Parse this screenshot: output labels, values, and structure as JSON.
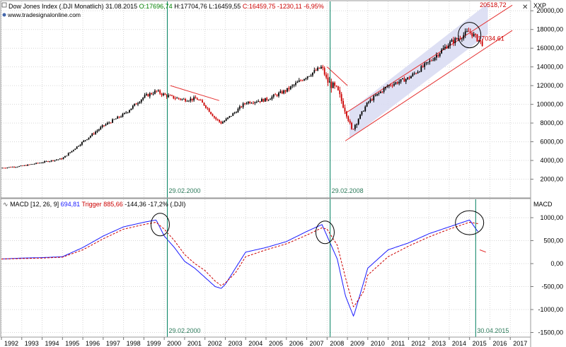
{
  "header": {
    "name": "Dow Jones Index (.DJI Monatlich)",
    "date": "31.08.2015",
    "open": "O:17696,74",
    "high": "H:17704,76",
    "low": "L:16459,55",
    "close": "C:16459,75",
    "change": "-1230,11",
    "change_pct": "-6,95%",
    "website": "www.tradesignalonline.com",
    "close_icon": "close-icon"
  },
  "price_panel": {
    "axis_label": "XXP",
    "last_label": "17034,61",
    "channel_label": "20518,72",
    "y_ticks": [
      "20000,00",
      "18000,00",
      "16000,00",
      "14000,00",
      "12000,00",
      "10000,00",
      "8000,00",
      "6000,00",
      "4000,00",
      "2000,00"
    ],
    "date_marker_1": "29.02.2000",
    "date_marker_2": "29.02.2008",
    "colors": {
      "up": "#000000",
      "down": "#cc0000",
      "channel": "#e53030",
      "channel_fill": "#d8daf2",
      "marker_line": "#008060",
      "marker_text": "#2c7a5a"
    }
  },
  "macd_panel": {
    "title": "MACD [12, 26, 9]",
    "macd_value": "694,81",
    "trigger_label": "Trigger",
    "trigger_value": "885,66",
    "diff": "-144,36",
    "diff_pct": "-17,2%",
    "symbol": "(.DJI)",
    "axis_label": "MACD",
    "y_ticks": [
      "1000,00",
      "500,00",
      "0,00",
      "-500,00",
      "-1000,00",
      "-1500,00"
    ],
    "date_marker_1": "29.02.2000",
    "date_marker_2": "30.04.2015",
    "colors": {
      "macd": "#1a1aff",
      "trigger": "#cc0000"
    }
  },
  "x_axis": {
    "years": [
      "1992",
      "1993",
      "1994",
      "1995",
      "1996",
      "1997",
      "1998",
      "1999",
      "2000",
      "2001",
      "2002",
      "2003",
      "2004",
      "2005",
      "2006",
      "2007",
      "2008",
      "2009",
      "2010",
      "2011",
      "2012",
      "2013",
      "2014",
      "2015",
      "2016",
      "2017"
    ]
  },
  "chart_data": [
    {
      "type": "candlestick",
      "title": "Dow Jones Index (.DJI Monatlich)",
      "x": [
        1992,
        1993,
        1994,
        1995,
        1996,
        1997,
        1998,
        1999,
        1999.6,
        2000,
        2000.5,
        2001,
        2001.6,
        2002,
        2002.5,
        2002.8,
        2003,
        2003.5,
        2004,
        2005,
        2006,
        2007,
        2007.75,
        2008,
        2008.5,
        2009,
        2009.2,
        2010,
        2011,
        2012,
        2013,
        2014,
        2015,
        2015.6
      ],
      "close": [
        3200,
        3400,
        3800,
        4200,
        6000,
        7700,
        8900,
        10800,
        11400,
        11000,
        10700,
        10500,
        10600,
        9900,
        8500,
        8000,
        8300,
        9200,
        10200,
        10500,
        11500,
        13000,
        14000,
        12500,
        11500,
        8800,
        7200,
        10200,
        12000,
        12800,
        14500,
        16500,
        17800,
        16500
      ],
      "ylim": [
        0,
        21000
      ],
      "annotations": [
        "29.02.2000",
        "29.02.2008",
        "20518,72",
        "17034,61"
      ]
    },
    {
      "type": "line",
      "title": "MACD [12, 26, 9]",
      "x": [
        1992,
        1993,
        1994,
        1995,
        1996,
        1997,
        1998,
        1999,
        1999.6,
        2000,
        2000.5,
        2001,
        2001.5,
        2002,
        2002.5,
        2002.8,
        2003,
        2003.5,
        2004,
        2005,
        2006,
        2007,
        2007.75,
        2008,
        2008.5,
        2008.9,
        2009.3,
        2009.8,
        2010,
        2011,
        2012,
        2013,
        2014,
        2015,
        2015.4
      ],
      "series": [
        {
          "name": "MACD",
          "values": [
            100,
            120,
            130,
            150,
            350,
            600,
            800,
            900,
            950,
            600,
            350,
            50,
            -100,
            -300,
            -500,
            -540,
            -450,
            -100,
            250,
            350,
            480,
            700,
            850,
            600,
            100,
            -700,
            -1150,
            -400,
            -100,
            300,
            450,
            650,
            800,
            950,
            700
          ]
        },
        {
          "name": "Trigger",
          "values": [
            100,
            110,
            120,
            140,
            300,
            540,
            750,
            850,
            900,
            750,
            500,
            200,
            0,
            -150,
            -380,
            -480,
            -420,
            -200,
            150,
            300,
            430,
            620,
            780,
            750,
            400,
            -300,
            -950,
            -600,
            -250,
            150,
            380,
            580,
            750,
            900,
            870
          ]
        }
      ],
      "ylim": [
        -1600,
        1400
      ],
      "annotations": [
        "29.02.2000",
        "30.04.2015"
      ]
    }
  ]
}
